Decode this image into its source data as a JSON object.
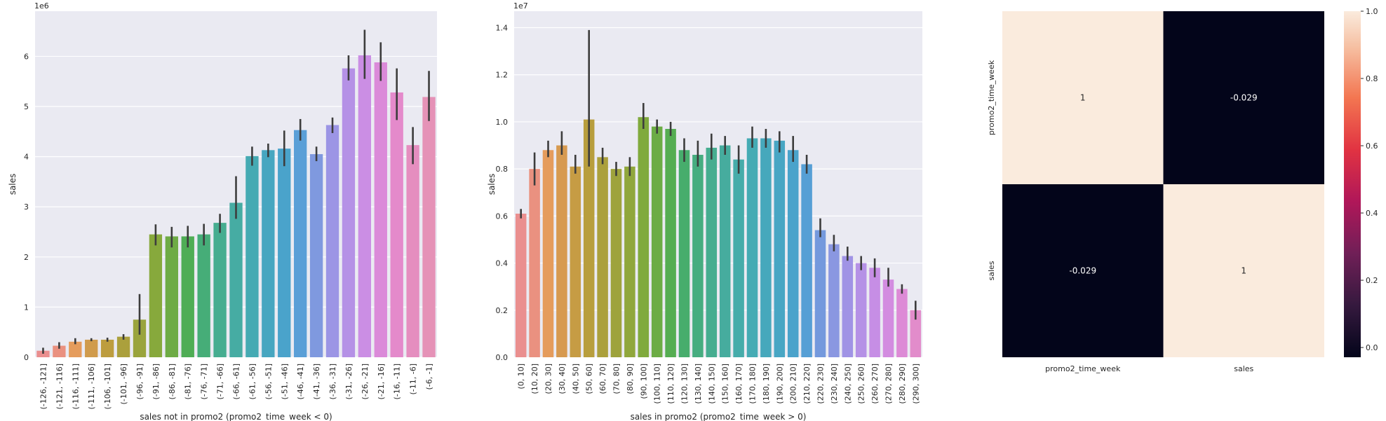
{
  "chart_data": [
    {
      "type": "bar",
      "title": "",
      "xlabel": "sales not in promo2 (promo2_time_week < 0)",
      "ylabel": "sales",
      "y_scale_label": "1e6",
      "ylim": [
        0,
        6.9
      ],
      "yticks": [
        0,
        1,
        2,
        3,
        4,
        5,
        6
      ],
      "grid": true,
      "categories": [
        "(-126, -121]",
        "(-121, -116]",
        "(-116, -111]",
        "(-111, -106]",
        "(-106, -101]",
        "(-101, -96]",
        "(-96, -91]",
        "(-91, -86]",
        "(-86, -81]",
        "(-81, -76]",
        "(-76, -71]",
        "(-71, -66]",
        "(-66, -61]",
        "(-61, -56]",
        "(-56, -51]",
        "(-51, -46]",
        "(-46, -41]",
        "(-41, -36]",
        "(-36, -31]",
        "(-31, -26]",
        "(-26, -21]",
        "(-21, -16]",
        "(-16, -11]",
        "(-11, -6]",
        "(-6, -1]"
      ],
      "values": [
        0.13,
        0.23,
        0.31,
        0.35,
        0.35,
        0.41,
        0.75,
        2.45,
        2.41,
        2.41,
        2.45,
        2.68,
        3.08,
        4.01,
        4.13,
        4.16,
        4.53,
        4.05,
        4.63,
        5.76,
        6.02,
        5.88,
        5.28,
        4.23,
        5.19
      ],
      "ci_low": [
        0.07,
        0.17,
        0.26,
        0.32,
        0.31,
        0.35,
        0.45,
        2.23,
        2.19,
        2.19,
        2.23,
        2.48,
        2.76,
        3.82,
        3.99,
        3.81,
        4.32,
        3.91,
        4.47,
        5.52,
        5.55,
        5.51,
        4.73,
        3.85,
        4.71
      ],
      "ci_high": [
        0.19,
        0.3,
        0.38,
        0.38,
        0.39,
        0.46,
        1.26,
        2.65,
        2.6,
        2.62,
        2.66,
        2.86,
        3.61,
        4.2,
        4.26,
        4.52,
        4.75,
        4.2,
        4.78,
        6.02,
        6.53,
        6.28,
        5.76,
        4.59,
        5.71
      ],
      "colors": [
        "#ea8f8f",
        "#ea9180",
        "#e59c5c",
        "#d09b4c",
        "#bd9d3f",
        "#aba03c",
        "#9aa43c",
        "#87a93c",
        "#6eab45",
        "#4fad55",
        "#46ad78",
        "#46ad90",
        "#46aca3",
        "#45aab3",
        "#47a6c0",
        "#4aa3cb",
        "#5a9fd7",
        "#7f99df",
        "#9c95e5",
        "#b591e6",
        "#cb8ee4",
        "#db8ad9",
        "#e48acb",
        "#e58ebf",
        "#e592b7"
      ],
      "cut_label": "1e7"
    },
    {
      "type": "bar",
      "title": "",
      "xlabel": "sales in promo2 (promo2_time_week > 0)",
      "ylabel": "sales",
      "y_scale_label": "1e7",
      "ylim": [
        0,
        1.47
      ],
      "yticks": [
        "0.0",
        "0.2",
        "0.4",
        "0.6",
        "0.8",
        "1.0",
        "1.2",
        "1.4"
      ],
      "grid": true,
      "categories": [
        "(0, 10]",
        "(10, 20]",
        "(20, 30]",
        "(30, 40]",
        "(40, 50]",
        "(50, 60]",
        "(60, 70]",
        "(70, 80]",
        "(80, 90]",
        "(90, 100]",
        "(100, 110]",
        "(110, 120]",
        "(120, 130]",
        "(130, 140]",
        "(140, 150]",
        "(150, 160]",
        "(160, 170]",
        "(170, 180]",
        "(180, 190]",
        "(190, 200]",
        "(200, 210]",
        "(210, 220]",
        "(220, 230]",
        "(230, 240]",
        "(240, 250]",
        "(250, 260]",
        "(260, 270]",
        "(270, 280]",
        "(280, 290]",
        "(290, 300]"
      ],
      "values": [
        0.61,
        0.8,
        0.88,
        0.9,
        0.81,
        1.01,
        0.85,
        0.8,
        0.81,
        1.02,
        0.98,
        0.97,
        0.88,
        0.86,
        0.89,
        0.9,
        0.84,
        0.93,
        0.93,
        0.92,
        0.88,
        0.82,
        0.54,
        0.48,
        0.43,
        0.4,
        0.38,
        0.33,
        0.29,
        0.2
      ],
      "ci_low": [
        0.59,
        0.73,
        0.85,
        0.86,
        0.78,
        0.81,
        0.82,
        0.77,
        0.77,
        0.97,
        0.95,
        0.94,
        0.83,
        0.81,
        0.84,
        0.86,
        0.78,
        0.89,
        0.89,
        0.87,
        0.83,
        0.78,
        0.51,
        0.45,
        0.41,
        0.37,
        0.34,
        0.3,
        0.27,
        0.16
      ],
      "ci_high": [
        0.63,
        0.87,
        0.92,
        0.96,
        0.86,
        1.39,
        0.89,
        0.83,
        0.85,
        1.08,
        1.01,
        1.0,
        0.93,
        0.92,
        0.95,
        0.94,
        0.9,
        0.98,
        0.97,
        0.96,
        0.94,
        0.86,
        0.59,
        0.52,
        0.47,
        0.43,
        0.42,
        0.38,
        0.31,
        0.24
      ],
      "colors": [
        "#ea8f8f",
        "#ea9180",
        "#e59c5c",
        "#d79a50",
        "#c69c44",
        "#b89e3d",
        "#aba03c",
        "#9ea33c",
        "#90a73c",
        "#80aa3d",
        "#6cac45",
        "#55ad52",
        "#47ad6c",
        "#46ad80",
        "#46ad90",
        "#46ac9e",
        "#46acaa",
        "#45abb4",
        "#46a8bc",
        "#48a6c4",
        "#4aa3cb",
        "#569fd5",
        "#7499dd",
        "#8a97e1",
        "#a093e5",
        "#b591e6",
        "#c68ee5",
        "#d38ce0",
        "#dd8ad6",
        "#e28ccb"
      ],
      "cut_label": "1e6"
    },
    {
      "type": "heatmap",
      "title": "",
      "rows": [
        "promo2_time_week",
        "sales"
      ],
      "columns": [
        "promo2_time_week",
        "sales"
      ],
      "values": [
        [
          1,
          -0.029
        ],
        [
          -0.029,
          1
        ]
      ],
      "annotations": [
        [
          "1",
          "-0.029"
        ],
        [
          "-0.029",
          "1"
        ]
      ],
      "colorbar_ticks": [
        "1.0",
        "0.8",
        "0.6",
        "0.4",
        "0.2",
        "0.0"
      ],
      "colorbar_range": [
        -0.029,
        1.0
      ],
      "colors": {
        "high": "#faebdd",
        "low": "#03051a"
      }
    }
  ]
}
